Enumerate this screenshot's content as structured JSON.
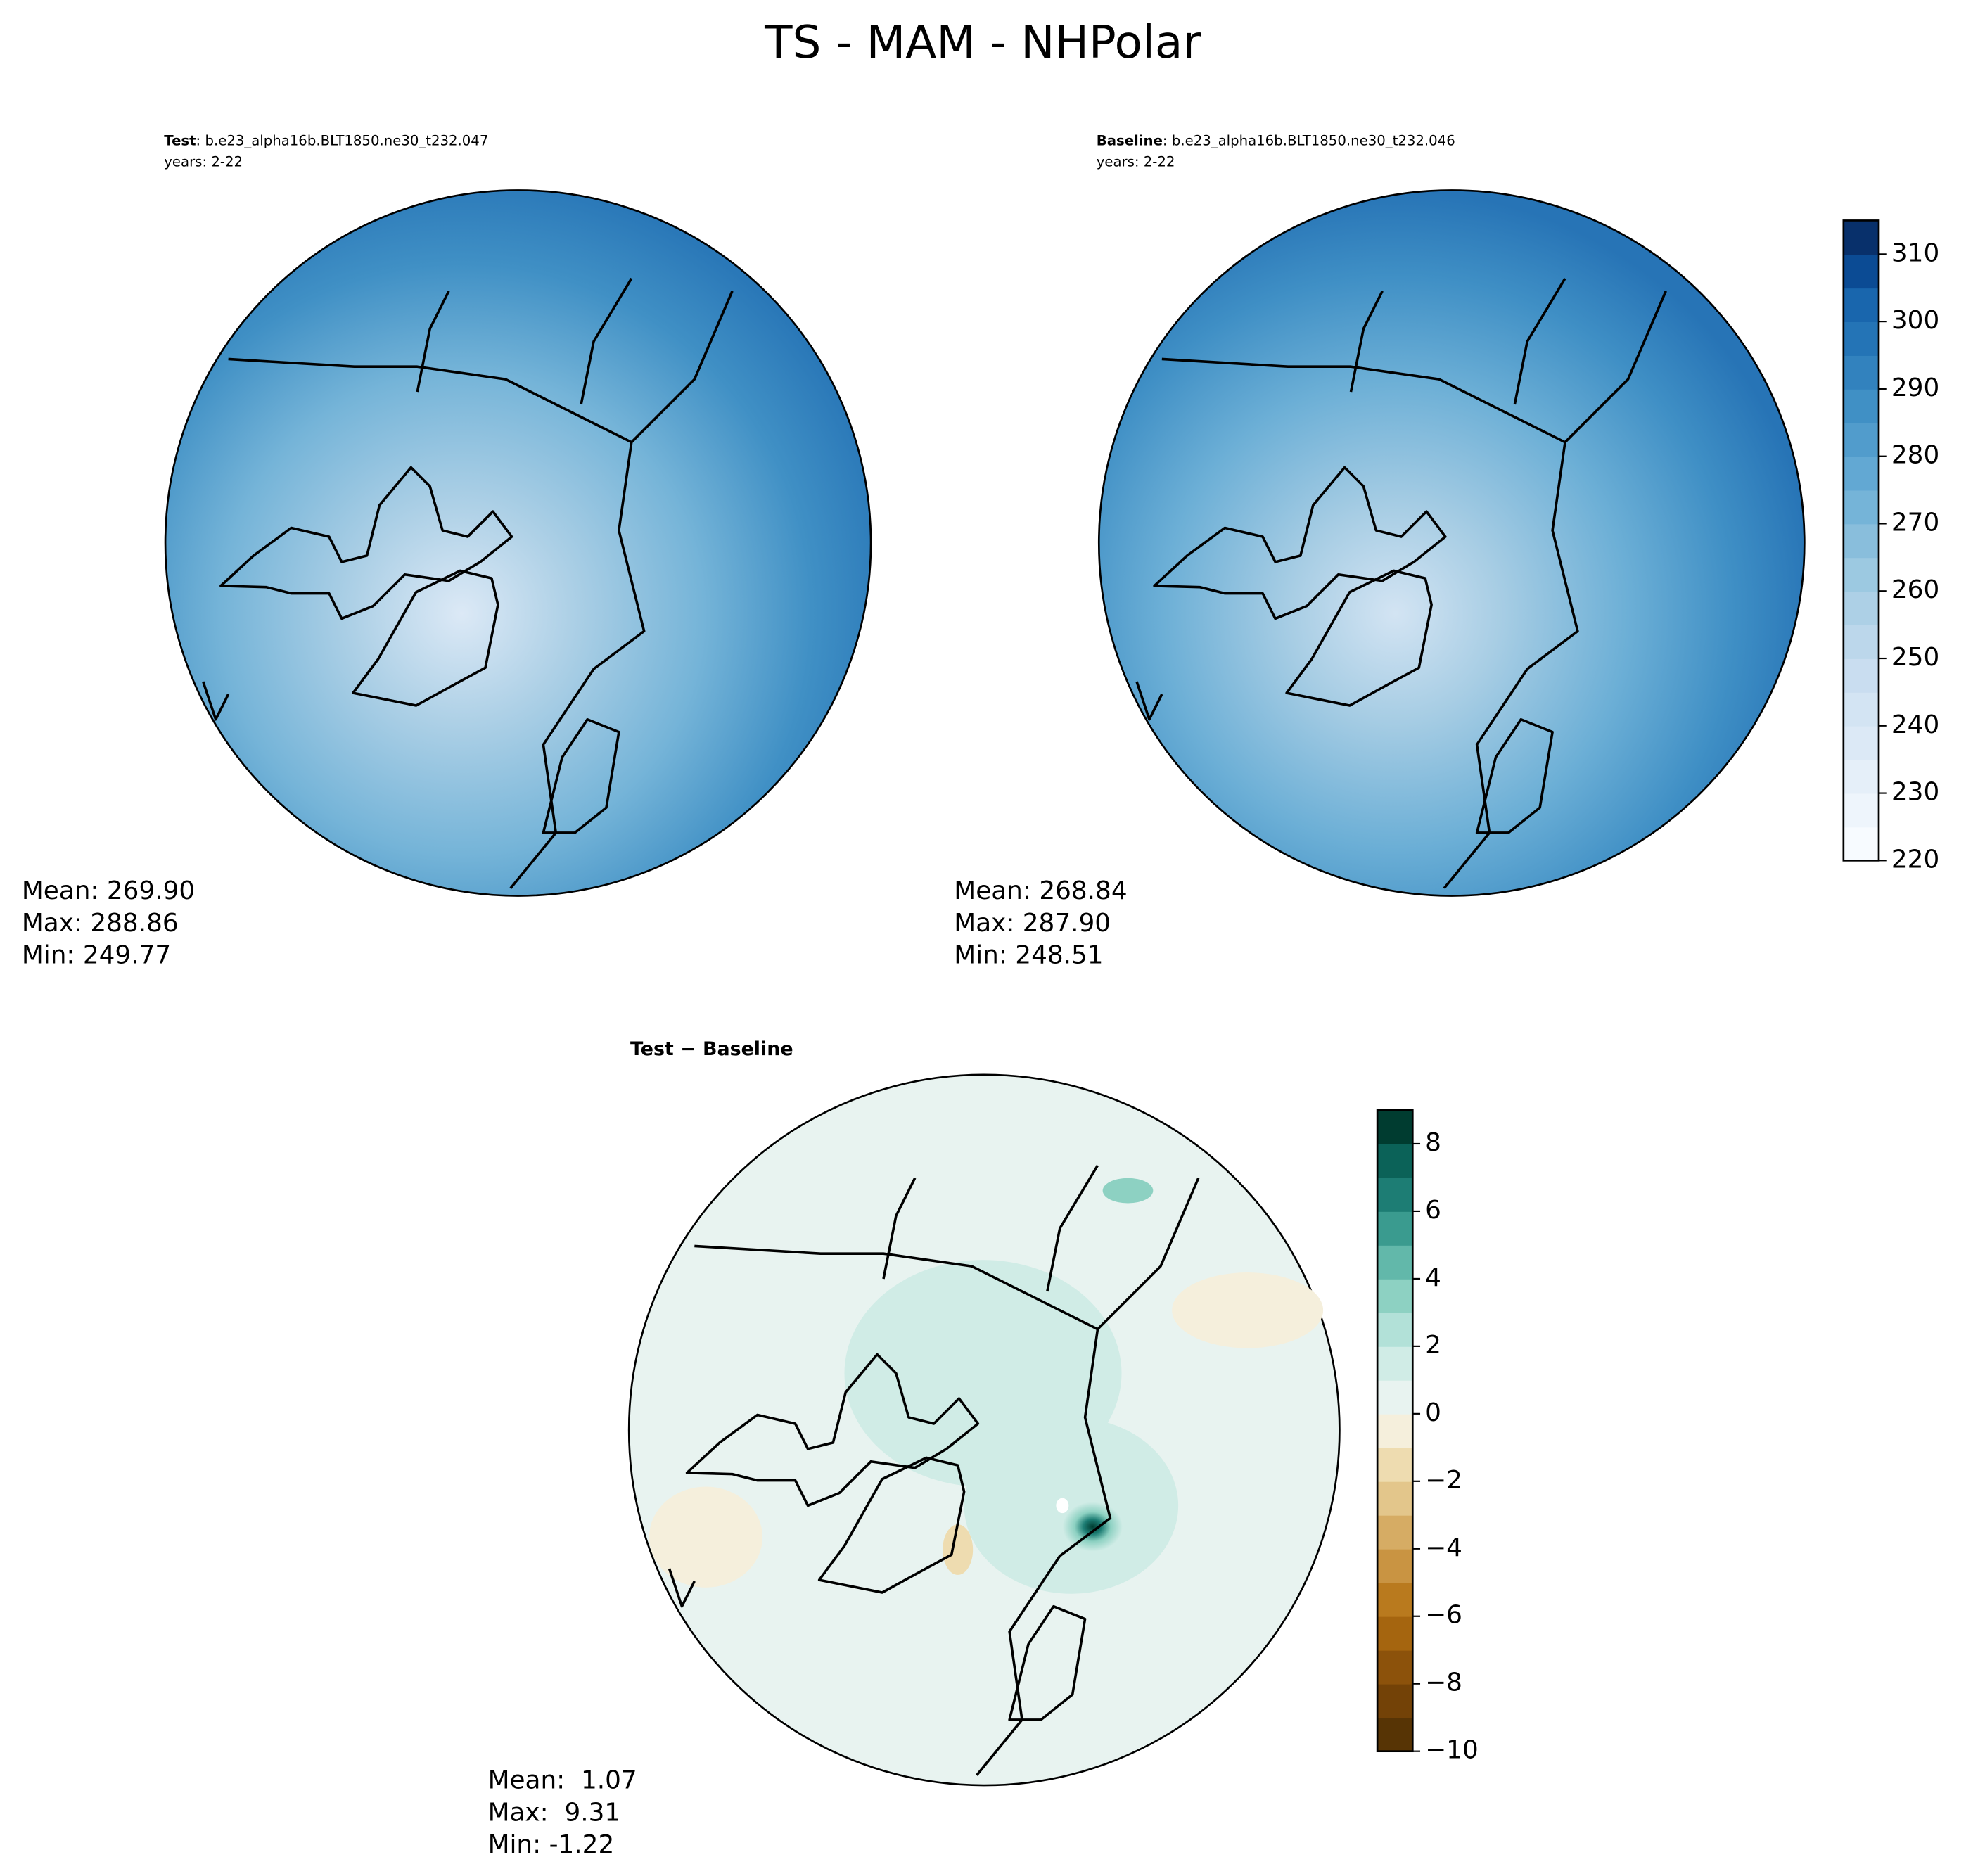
{
  "title": "TS - MAM - NHPolar",
  "panels": [
    {
      "label": "Test",
      "case": ": b.e23_alpha16b.BLT1850.ne30_t232.047",
      "years": "years: 2-22",
      "stats": [
        "Mean: 269.90",
        "Max: 288.86",
        "Min: 249.77"
      ]
    },
    {
      "label": "Baseline",
      "case": ": b.e23_alpha16b.BLT1850.ne30_t232.046",
      "years": "years: 2-22",
      "stats": [
        "Mean: 268.84",
        "Max: 287.90",
        "Min: 248.51"
      ]
    },
    {
      "label": "Test − Baseline",
      "stats": [
        "Mean:  1.07",
        "Max:  9.31",
        "Min: -1.22"
      ]
    }
  ],
  "colorbars": [
    {
      "lim": [
        220,
        315
      ],
      "ticks": [
        220,
        230,
        240,
        250,
        260,
        270,
        280,
        290,
        300,
        310
      ],
      "colors": [
        "#f7fbff",
        "#eef5fc",
        "#e5eff9",
        "#dce9f6",
        "#d3e4f3",
        "#c9ddf0",
        "#bcd7eb",
        "#add0e6",
        "#9cc9e1",
        "#89bedc",
        "#75b4d8",
        "#62a8d3",
        "#519ccc",
        "#4090c5",
        "#3282be",
        "#2474b6",
        "#1966ad",
        "#0b4b94",
        "#08306b"
      ]
    },
    {
      "lim": [
        -10,
        9
      ],
      "ticks": [
        {
          "value": -10,
          "label": "−10"
        },
        {
          "value": -8,
          "label": "−8"
        },
        {
          "value": -6,
          "label": "−6"
        },
        {
          "value": -4,
          "label": "−4"
        },
        {
          "value": -2,
          "label": "−2"
        },
        0,
        2,
        4,
        6,
        8
      ],
      "colors": [
        "#573405",
        "#734207",
        "#8c520b",
        "#a5650f",
        "#b97a1e",
        "#c99442",
        "#d6ac64",
        "#e3c68b",
        "#eedcb0",
        "#f5efdc",
        "#e8f3f0",
        "#d0ece6",
        "#b2e1d8",
        "#8dd1c2",
        "#62b8aa",
        "#3a9b8f",
        "#1d7d74",
        "#0b6258",
        "#003c30"
      ]
    }
  ]
}
